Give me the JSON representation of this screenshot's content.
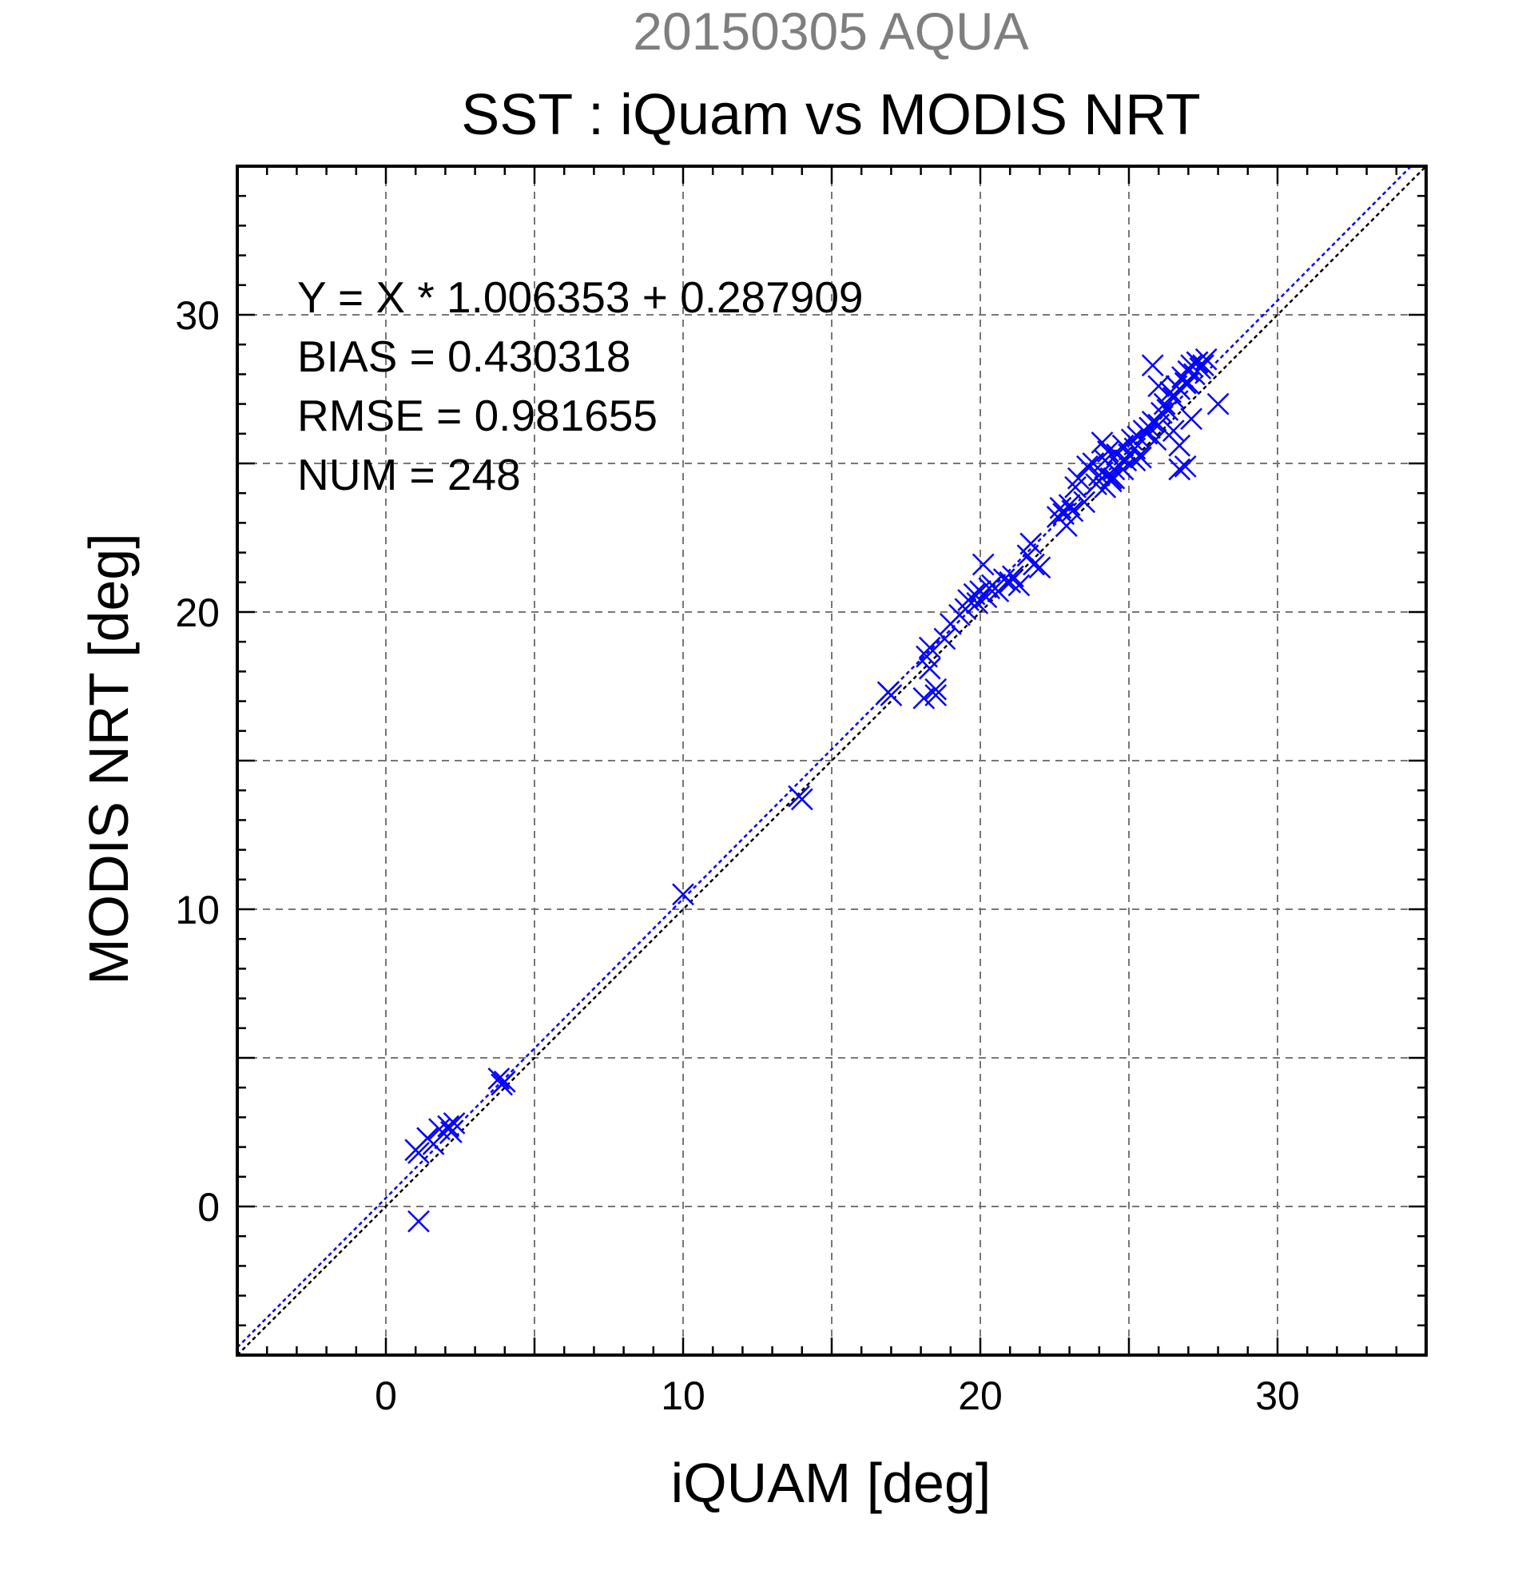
{
  "chart_data": {
    "type": "scatter",
    "title": "20150305 AQUA",
    "subtitle": "SST : iQuam vs MODIS NRT",
    "xlabel": "iQUAM [deg]",
    "ylabel": "MODIS NRT [deg]",
    "xlim": [
      -5,
      35
    ],
    "ylim": [
      -5,
      35
    ],
    "xticks": [
      0,
      10,
      20,
      30
    ],
    "yticks": [
      0,
      10,
      20,
      30
    ],
    "grid_step": 5,
    "minor_step": 1,
    "grid": true,
    "annotations": [
      "Y = X * 1.006353 + 0.287909",
      "BIAS = 0.430318",
      "RMSE = 0.981655",
      "NUM = 248"
    ],
    "regression": {
      "slope": 1.006353,
      "intercept": 0.287909
    },
    "colors": {
      "points": "#0000ff",
      "fit": "#0000ff",
      "identity": "#000000",
      "date_title": "#7f7f7f"
    },
    "marker": "x",
    "series": [
      {
        "x": [
          1.0,
          1.1,
          1.4,
          1.6,
          1.8,
          2.1,
          2.2,
          2.3,
          1.1,
          3.8,
          4.0,
          3.9,
          10.0,
          13.9,
          14.0,
          16.9,
          17.0,
          18.1,
          18.2,
          18.3,
          18.3,
          18.5,
          18.5,
          18.8,
          19.0,
          19.3,
          19.5,
          19.6,
          19.8,
          19.9,
          20.0,
          20.1,
          20.2,
          20.3,
          20.4,
          20.6,
          20.8,
          21.0,
          21.1,
          21.3,
          21.6,
          21.7,
          21.8,
          22.0,
          22.6,
          22.7,
          22.8,
          22.9,
          23.0,
          23.1,
          23.2,
          23.3,
          23.5,
          23.6,
          23.8,
          23.9,
          24.0,
          24.1,
          24.1,
          24.2,
          24.3,
          24.4,
          24.5,
          24.6,
          24.7,
          24.8,
          24.9,
          25.0,
          25.1,
          25.2,
          25.3,
          25.4,
          25.5,
          25.6,
          25.7,
          25.8,
          25.9,
          26.0,
          26.1,
          26.2,
          26.3,
          26.4,
          26.5,
          26.6,
          26.7,
          26.8,
          26.9,
          27.0,
          27.1,
          27.2,
          27.3,
          27.4,
          27.5,
          27.6,
          26.0,
          25.8,
          26.7,
          26.9,
          27.1,
          28.0,
          26.5,
          26.7,
          27.0,
          27.3,
          24.5,
          24.8,
          25.2,
          24.2,
          24.4
        ],
        "y": [
          1.9,
          1.8,
          2.3,
          2.1,
          2.6,
          2.7,
          2.5,
          2.8,
          -0.5,
          4.3,
          4.2,
          4.1,
          10.5,
          13.8,
          13.7,
          17.3,
          17.2,
          17.1,
          18.5,
          18.8,
          18.1,
          17.2,
          17.4,
          19.1,
          19.6,
          19.9,
          20.1,
          20.4,
          20.6,
          20.3,
          20.7,
          21.6,
          20.5,
          20.8,
          20.9,
          20.7,
          21.1,
          21.0,
          21.2,
          20.9,
          21.9,
          22.3,
          21.6,
          21.5,
          23.2,
          23.5,
          23.3,
          22.9,
          23.6,
          23.4,
          24.2,
          24.5,
          23.7,
          24.9,
          25.0,
          24.3,
          24.6,
          25.7,
          24.7,
          25.1,
          25.4,
          24.5,
          24.8,
          25.3,
          24.9,
          25.6,
          25.1,
          25.3,
          25.8,
          25.5,
          25.9,
          25.2,
          26.1,
          26.0,
          26.2,
          26.4,
          25.8,
          26.3,
          26.7,
          27.0,
          26.8,
          27.4,
          27.2,
          27.6,
          27.5,
          27.9,
          27.7,
          28.1,
          28.3,
          28.0,
          28.4,
          28.2,
          28.3,
          28.5,
          27.6,
          28.3,
          24.8,
          24.9,
          26.5,
          27.0,
          26.1,
          25.6,
          27.7,
          28.4,
          24.5,
          24.8,
          25.1,
          24.2,
          24.4
        ]
      }
    ]
  }
}
